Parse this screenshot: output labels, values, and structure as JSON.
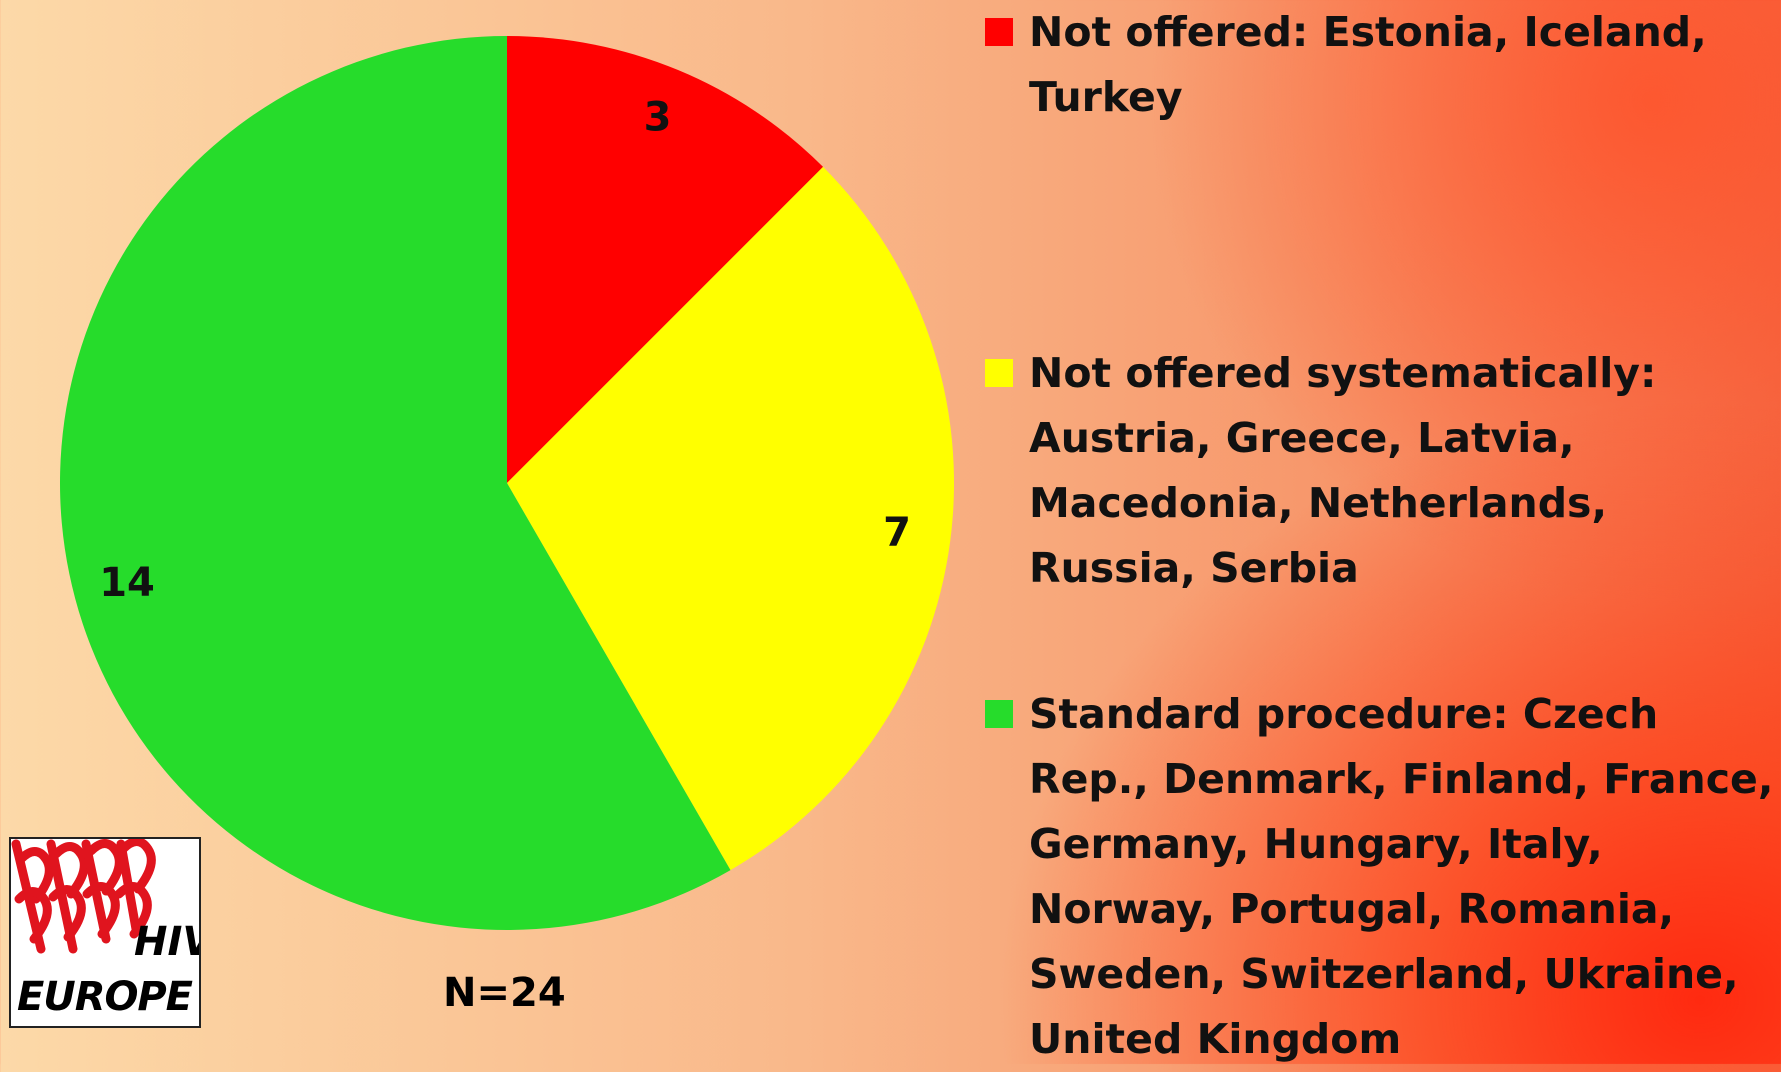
{
  "chart_data": {
    "type": "pie",
    "categories": [
      "Not offered: Estonia, Iceland, Turkey",
      "Not offered systematically: Austria, Greece, Latvia, Macedonia, Netherlands, Russia, Serbia",
      "Standard procedure: Czech Rep., Denmark, Finland, France, Germany, Hungary, Italy, Norway, Portugal, Romania, Sweden, Switzerland, Ukraine, United Kingdom"
    ],
    "values": [
      3,
      7,
      14
    ],
    "colors": [
      "#ff0000",
      "#ffff00",
      "#26dc2b"
    ],
    "annotation": "N=24"
  },
  "logo": {
    "line1": "HIV",
    "line2": "EUROPE"
  }
}
